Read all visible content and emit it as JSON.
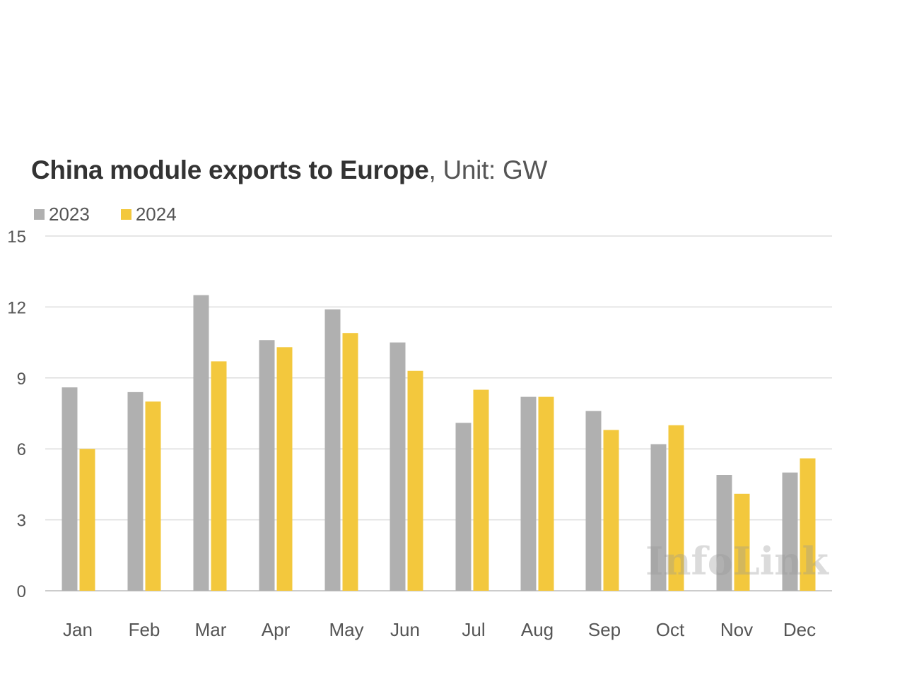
{
  "chart_data": {
    "type": "bar",
    "title": "China module exports to Europe",
    "title_suffix": ", Unit: GW",
    "xlabel": "",
    "ylabel": "",
    "ylim": [
      0,
      15
    ],
    "yticks": [
      0,
      3,
      6,
      9,
      12,
      15
    ],
    "grid": true,
    "legend_position": "top-left",
    "categories": [
      "Jan",
      "Feb",
      "Mar",
      "Apr",
      "May",
      "Jun",
      "Jul",
      "Aug",
      "Sep",
      "Oct",
      "Nov",
      "Dec"
    ],
    "series": [
      {
        "name": "2023",
        "color": "#b0b0b0",
        "values": [
          8.6,
          8.4,
          12.5,
          10.6,
          11.9,
          10.5,
          7.1,
          8.2,
          7.6,
          6.2,
          4.9,
          5.0
        ]
      },
      {
        "name": "2024",
        "color": "#f3c83d",
        "values": [
          6.0,
          8.0,
          9.7,
          10.3,
          10.9,
          9.3,
          8.5,
          8.2,
          6.8,
          7.0,
          4.1,
          5.6
        ]
      }
    ],
    "watermark": "InfoLink"
  },
  "colors": {
    "gridline": "#dddddd",
    "axis": "#cccccc"
  }
}
